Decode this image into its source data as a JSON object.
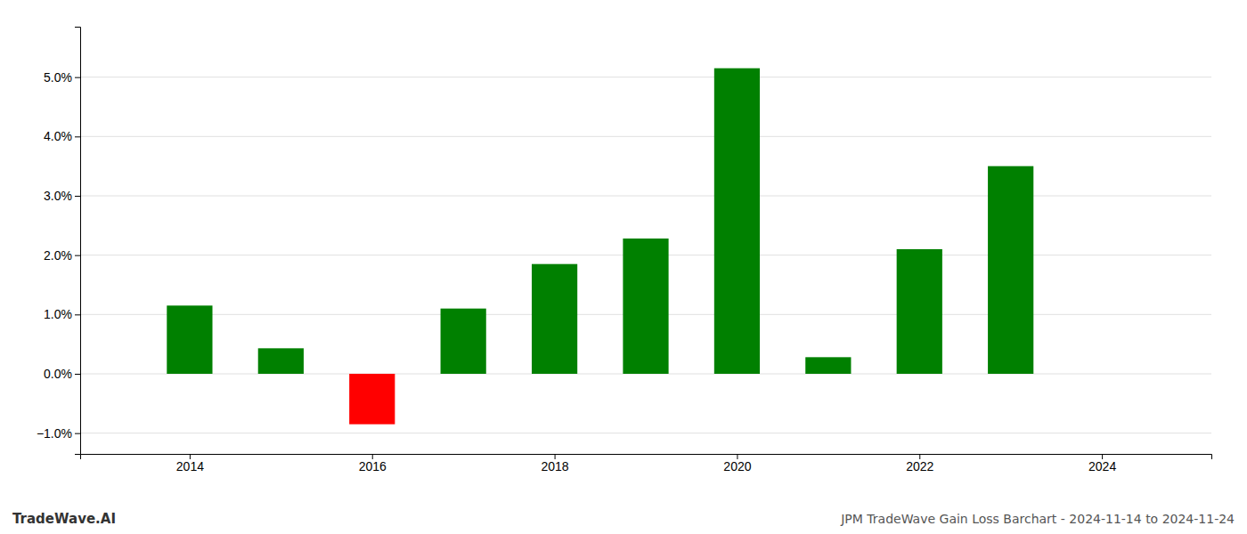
{
  "chart_data": {
    "type": "bar",
    "title": "JPM TradeWave Gain Loss Barchart - 2024-11-14 to 2024-11-24",
    "annotations": [
      "TradeWave.AI"
    ],
    "x": [
      2014,
      2015,
      2016,
      2017,
      2018,
      2019,
      2020,
      2021,
      2022,
      2023
    ],
    "values": [
      1.15,
      0.43,
      -0.85,
      1.1,
      1.85,
      2.28,
      5.15,
      0.28,
      2.1,
      3.5
    ],
    "colors": [
      "#008000",
      "#008000",
      "#ff0000",
      "#008000",
      "#008000",
      "#008000",
      "#008000",
      "#008000",
      "#008000",
      "#008000"
    ],
    "xlim": [
      2012.8,
      2025.2
    ],
    "xticks": [
      2014,
      2016,
      2018,
      2020,
      2022,
      2024
    ],
    "ylim": [
      -1.35,
      5.85
    ],
    "yticks": [
      {
        "value": -1.0,
        "label": "−1.0%"
      },
      {
        "value": 0.0,
        "label": "0.0%"
      },
      {
        "value": 1.0,
        "label": "1.0%"
      },
      {
        "value": 2.0,
        "label": "2.0%"
      },
      {
        "value": 3.0,
        "label": "3.0%"
      },
      {
        "value": 4.0,
        "label": "4.0%"
      },
      {
        "value": 5.0,
        "label": "5.0%"
      }
    ],
    "grid": true
  }
}
